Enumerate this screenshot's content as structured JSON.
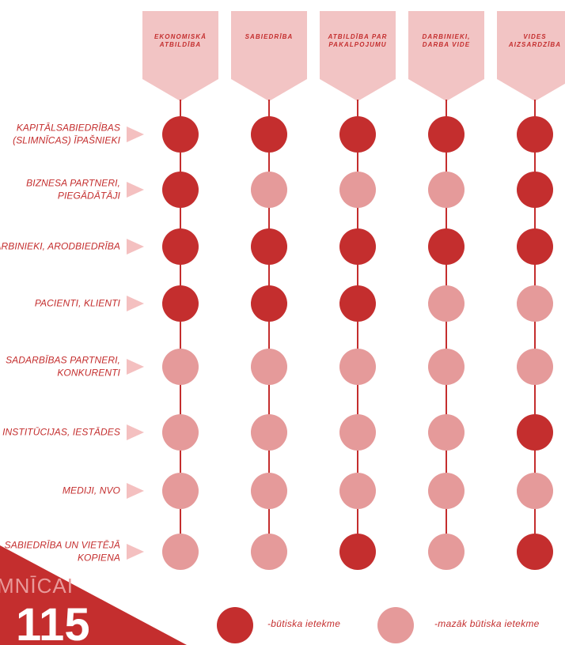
{
  "colors": {
    "significant": "#c42e2e",
    "less_significant": "#e59a9a",
    "header_fill": "#f2c4c4",
    "arrow_fill": "#f4c0c0",
    "line": "#c42e2e"
  },
  "columns": [
    {
      "label": "EKONOMISKĀ ATBILDĪBA"
    },
    {
      "label": "SABIEDRĪBA"
    },
    {
      "label": "ATBILDĪBA PAR PAKALPOJUMU"
    },
    {
      "label": "DARBINIEKI, DARBA VIDE"
    },
    {
      "label": "VIDES AIZSARDZĪBA"
    }
  ],
  "rows": [
    {
      "label": "KAPITĀLSABIEDRĪBAS (SLIMNĪCAS) ĪPAŠNIEKI",
      "impact": [
        "s",
        "s",
        "s",
        "s",
        "s"
      ]
    },
    {
      "label": "BIZNESA PARTNERI, PIEGĀDĀTĀJI",
      "impact": [
        "s",
        "l",
        "l",
        "l",
        "s"
      ]
    },
    {
      "label": "DARBINIEKI, ARODBIEDRĪBA",
      "impact": [
        "s",
        "s",
        "s",
        "s",
        "s"
      ]
    },
    {
      "label": "PACIENTI, KLIENTI",
      "impact": [
        "s",
        "s",
        "s",
        "l",
        "l"
      ]
    },
    {
      "label": "SADARBĪBAS PARTNERI, KONKURENTI",
      "impact": [
        "l",
        "l",
        "l",
        "l",
        "l"
      ]
    },
    {
      "label": "VALSTS INSTITŪCIJAS, IESTĀDES",
      "impact": [
        "l",
        "l",
        "l",
        "l",
        "s"
      ]
    },
    {
      "label": "MEDIJI, NVO",
      "impact": [
        "l",
        "l",
        "l",
        "l",
        "l"
      ]
    },
    {
      "label": "SABIEDRĪBA UN VIETĒJĀ KOPIENA",
      "impact": [
        "l",
        "l",
        "s",
        "l",
        "s"
      ]
    }
  ],
  "legend": {
    "significant_label": "-būtiska ietekme",
    "less_significant_label": "-mazāk būtiska ietekme"
  },
  "corner": {
    "word": "MNĪCAI",
    "page_number": "115"
  }
}
